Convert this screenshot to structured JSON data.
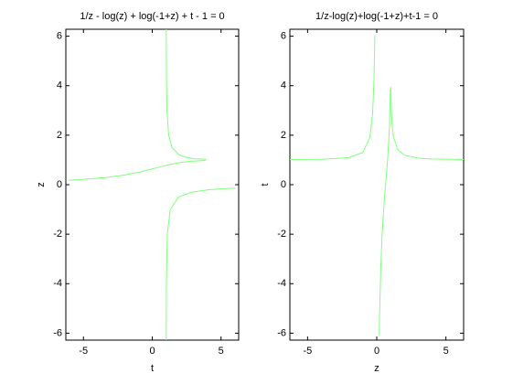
{
  "chart_data": [
    {
      "type": "line",
      "title": "1/z - log(z) + log(-1+z) + t - 1 = 0",
      "xlabel": "t",
      "ylabel": "z",
      "xlim": [
        -6.28,
        6.28
      ],
      "ylim": [
        -6.28,
        6.28
      ],
      "xticks": [
        -5,
        0,
        5
      ],
      "yticks": [
        -6,
        -4,
        -2,
        0,
        2,
        4,
        6
      ],
      "series": [
        {
          "color": "#80ff80",
          "x": [
            1.015,
            1.027,
            1.094,
            1.307,
            1.902,
            2.867,
            4.209,
            5.63,
            6.046,
            null,
            -6.07,
            -5.386,
            -3.18,
            -1.905,
            -1,
            -0.262,
            0.418,
            1.136,
            2.086,
            2.892,
            3.871,
            null,
            3.95,
            3.09,
            2.489,
            1.958,
            1.432,
            1.193,
            1.072,
            1.038,
            1.014
          ],
          "values": [
            -6.28,
            -4,
            -2,
            -1,
            -0.5,
            -0.3,
            -0.2,
            -0.15,
            -0.14,
            null,
            0.18,
            0.2,
            0.3,
            0.4,
            0.5,
            0.6,
            0.7,
            0.8,
            0.9,
            0.95,
            0.98,
            null,
            1.02,
            1.05,
            1.1,
            1.2,
            1.5,
            2,
            3,
            4,
            6.28
          ]
        }
      ]
    },
    {
      "type": "line",
      "title": "1/z-log(z)+log(-1+z)+t-1 = 0",
      "xlabel": "z",
      "ylabel": "t",
      "xlim": [
        -6.28,
        6.28
      ],
      "ylim": [
        -6.28,
        6.28
      ],
      "xticks": [
        -5,
        0,
        5
      ],
      "yticks": [
        -6,
        -4,
        -2,
        0,
        2,
        4,
        6
      ],
      "series": [
        {
          "color": "#80ff80",
          "x": [
            -6.28,
            -4,
            -2,
            -1,
            -0.5,
            -0.3,
            -0.2,
            -0.15,
            -0.14,
            null,
            0.18,
            0.2,
            0.3,
            0.4,
            0.5,
            0.6,
            0.7,
            0.8,
            0.9,
            0.95,
            0.98,
            null,
            1.02,
            1.05,
            1.1,
            1.2,
            1.5,
            2,
            3,
            4,
            6.28
          ],
          "values": [
            1.015,
            1.027,
            1.094,
            1.307,
            1.902,
            2.867,
            4.209,
            5.63,
            6.046,
            null,
            -6.07,
            -5.386,
            -3.18,
            -1.905,
            -1,
            -0.262,
            0.418,
            1.136,
            2.086,
            2.892,
            3.871,
            null,
            3.95,
            3.09,
            2.489,
            1.958,
            1.432,
            1.193,
            1.072,
            1.038,
            1.014
          ]
        }
      ]
    }
  ]
}
